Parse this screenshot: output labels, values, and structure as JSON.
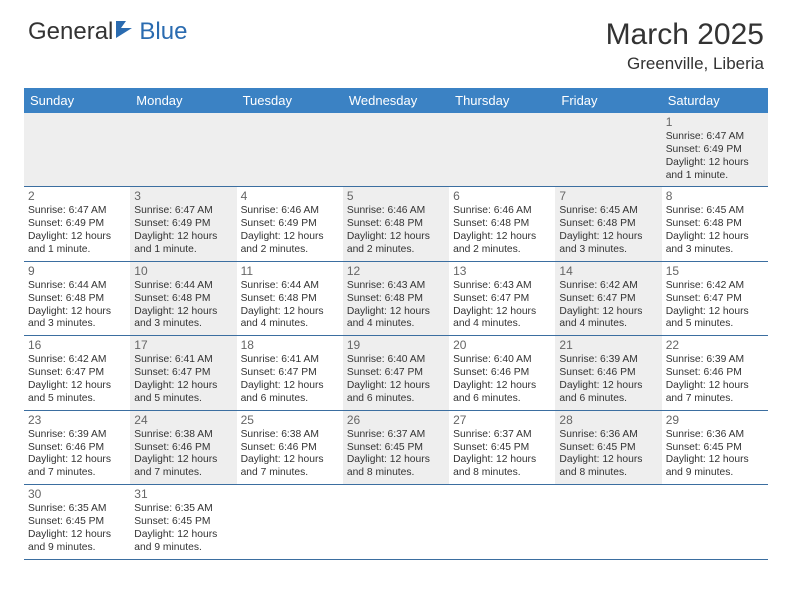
{
  "logo": {
    "part1": "General",
    "part2": "Blue",
    "color1": "#333333",
    "color2": "#2a6bb0",
    "icon_color": "#2a6bb0"
  },
  "title": "March 2025",
  "subtitle": "Greenville, Liberia",
  "day_headers": [
    "Sunday",
    "Monday",
    "Tuesday",
    "Wednesday",
    "Thursday",
    "Friday",
    "Saturday"
  ],
  "colors": {
    "header_bg": "#3b82c4",
    "header_text": "#ffffff",
    "row_border": "#3b6ea0",
    "alt_bg": "#eeeeee",
    "text": "#333333"
  },
  "weeks": [
    [
      null,
      null,
      null,
      null,
      null,
      null,
      {
        "n": "1",
        "sr": "Sunrise: 6:47 AM",
        "ss": "Sunset: 6:49 PM",
        "dl": "Daylight: 12 hours and 1 minute."
      }
    ],
    [
      {
        "n": "2",
        "sr": "Sunrise: 6:47 AM",
        "ss": "Sunset: 6:49 PM",
        "dl": "Daylight: 12 hours and 1 minute."
      },
      {
        "n": "3",
        "sr": "Sunrise: 6:47 AM",
        "ss": "Sunset: 6:49 PM",
        "dl": "Daylight: 12 hours and 1 minute."
      },
      {
        "n": "4",
        "sr": "Sunrise: 6:46 AM",
        "ss": "Sunset: 6:49 PM",
        "dl": "Daylight: 12 hours and 2 minutes."
      },
      {
        "n": "5",
        "sr": "Sunrise: 6:46 AM",
        "ss": "Sunset: 6:48 PM",
        "dl": "Daylight: 12 hours and 2 minutes."
      },
      {
        "n": "6",
        "sr": "Sunrise: 6:46 AM",
        "ss": "Sunset: 6:48 PM",
        "dl": "Daylight: 12 hours and 2 minutes."
      },
      {
        "n": "7",
        "sr": "Sunrise: 6:45 AM",
        "ss": "Sunset: 6:48 PM",
        "dl": "Daylight: 12 hours and 3 minutes."
      },
      {
        "n": "8",
        "sr": "Sunrise: 6:45 AM",
        "ss": "Sunset: 6:48 PM",
        "dl": "Daylight: 12 hours and 3 minutes."
      }
    ],
    [
      {
        "n": "9",
        "sr": "Sunrise: 6:44 AM",
        "ss": "Sunset: 6:48 PM",
        "dl": "Daylight: 12 hours and 3 minutes."
      },
      {
        "n": "10",
        "sr": "Sunrise: 6:44 AM",
        "ss": "Sunset: 6:48 PM",
        "dl": "Daylight: 12 hours and 3 minutes."
      },
      {
        "n": "11",
        "sr": "Sunrise: 6:44 AM",
        "ss": "Sunset: 6:48 PM",
        "dl": "Daylight: 12 hours and 4 minutes."
      },
      {
        "n": "12",
        "sr": "Sunrise: 6:43 AM",
        "ss": "Sunset: 6:48 PM",
        "dl": "Daylight: 12 hours and 4 minutes."
      },
      {
        "n": "13",
        "sr": "Sunrise: 6:43 AM",
        "ss": "Sunset: 6:47 PM",
        "dl": "Daylight: 12 hours and 4 minutes."
      },
      {
        "n": "14",
        "sr": "Sunrise: 6:42 AM",
        "ss": "Sunset: 6:47 PM",
        "dl": "Daylight: 12 hours and 4 minutes."
      },
      {
        "n": "15",
        "sr": "Sunrise: 6:42 AM",
        "ss": "Sunset: 6:47 PM",
        "dl": "Daylight: 12 hours and 5 minutes."
      }
    ],
    [
      {
        "n": "16",
        "sr": "Sunrise: 6:42 AM",
        "ss": "Sunset: 6:47 PM",
        "dl": "Daylight: 12 hours and 5 minutes."
      },
      {
        "n": "17",
        "sr": "Sunrise: 6:41 AM",
        "ss": "Sunset: 6:47 PM",
        "dl": "Daylight: 12 hours and 5 minutes."
      },
      {
        "n": "18",
        "sr": "Sunrise: 6:41 AM",
        "ss": "Sunset: 6:47 PM",
        "dl": "Daylight: 12 hours and 6 minutes."
      },
      {
        "n": "19",
        "sr": "Sunrise: 6:40 AM",
        "ss": "Sunset: 6:47 PM",
        "dl": "Daylight: 12 hours and 6 minutes."
      },
      {
        "n": "20",
        "sr": "Sunrise: 6:40 AM",
        "ss": "Sunset: 6:46 PM",
        "dl": "Daylight: 12 hours and 6 minutes."
      },
      {
        "n": "21",
        "sr": "Sunrise: 6:39 AM",
        "ss": "Sunset: 6:46 PM",
        "dl": "Daylight: 12 hours and 6 minutes."
      },
      {
        "n": "22",
        "sr": "Sunrise: 6:39 AM",
        "ss": "Sunset: 6:46 PM",
        "dl": "Daylight: 12 hours and 7 minutes."
      }
    ],
    [
      {
        "n": "23",
        "sr": "Sunrise: 6:39 AM",
        "ss": "Sunset: 6:46 PM",
        "dl": "Daylight: 12 hours and 7 minutes."
      },
      {
        "n": "24",
        "sr": "Sunrise: 6:38 AM",
        "ss": "Sunset: 6:46 PM",
        "dl": "Daylight: 12 hours and 7 minutes."
      },
      {
        "n": "25",
        "sr": "Sunrise: 6:38 AM",
        "ss": "Sunset: 6:46 PM",
        "dl": "Daylight: 12 hours and 7 minutes."
      },
      {
        "n": "26",
        "sr": "Sunrise: 6:37 AM",
        "ss": "Sunset: 6:45 PM",
        "dl": "Daylight: 12 hours and 8 minutes."
      },
      {
        "n": "27",
        "sr": "Sunrise: 6:37 AM",
        "ss": "Sunset: 6:45 PM",
        "dl": "Daylight: 12 hours and 8 minutes."
      },
      {
        "n": "28",
        "sr": "Sunrise: 6:36 AM",
        "ss": "Sunset: 6:45 PM",
        "dl": "Daylight: 12 hours and 8 minutes."
      },
      {
        "n": "29",
        "sr": "Sunrise: 6:36 AM",
        "ss": "Sunset: 6:45 PM",
        "dl": "Daylight: 12 hours and 9 minutes."
      }
    ],
    [
      {
        "n": "30",
        "sr": "Sunrise: 6:35 AM",
        "ss": "Sunset: 6:45 PM",
        "dl": "Daylight: 12 hours and 9 minutes."
      },
      {
        "n": "31",
        "sr": "Sunrise: 6:35 AM",
        "ss": "Sunset: 6:45 PM",
        "dl": "Daylight: 12 hours and 9 minutes."
      },
      null,
      null,
      null,
      null,
      null
    ]
  ]
}
